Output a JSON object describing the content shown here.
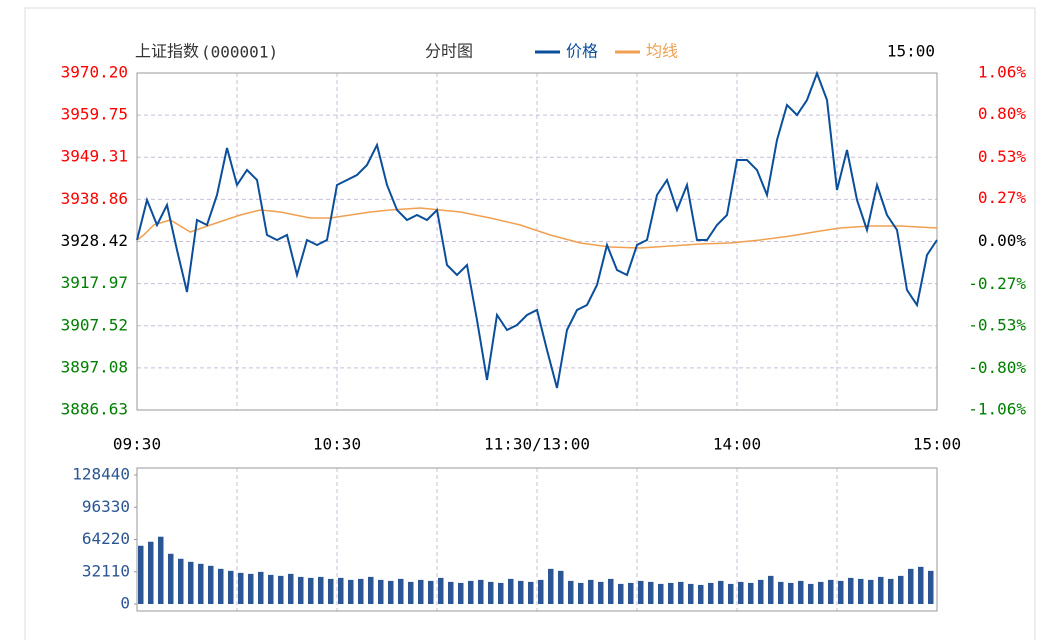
{
  "chart_data": [
    {
      "type": "line",
      "title": "上证指数",
      "subtitle": "(000001)",
      "chart_label": "分时图",
      "time_label": "15:00",
      "xlim": [
        0,
        240
      ],
      "xticks": [
        {
          "value": 0,
          "label": "09:30"
        },
        {
          "value": 60,
          "label": "10:30"
        },
        {
          "value": 120,
          "label": "11:30/13:00"
        },
        {
          "value": 180,
          "label": "14:00"
        },
        {
          "value": 240,
          "label": "15:00"
        }
      ],
      "ylim": [
        3886.63,
        3970.2
      ],
      "yticks": [
        {
          "value": 3970.2,
          "label": "3970.20"
        },
        3959.75,
        3949.31,
        3938.86,
        3928.42,
        3917.97,
        3907.52,
        3897.08,
        3886.63
      ],
      "y2lim": [
        -1.06,
        1.06
      ],
      "y2ticks": [
        {
          "value": 1.06,
          "label": "1.06%"
        },
        {
          "value": 0.8,
          "label": "0.80%"
        },
        {
          "value": 0.53,
          "label": "0.53%"
        },
        {
          "value": 0.27,
          "label": "0.27%"
        },
        {
          "value": 0,
          "label": "0.00%"
        },
        {
          "value": -0.27,
          "label": "-0.27%"
        },
        {
          "value": -0.53,
          "label": "-0.53%"
        },
        {
          "value": -0.8,
          "label": "-0.80%"
        },
        {
          "value": -1.06,
          "label": "-1.06%"
        }
      ],
      "grid": true,
      "up_color": "#ff0000",
      "down_color": "#008000",
      "flat_color": "#000000",
      "series": [
        {
          "name": "价格",
          "color": "#0b4f9c",
          "x": [
            0,
            3,
            6,
            9,
            12,
            15,
            18,
            21,
            24,
            27,
            30,
            33,
            36,
            39,
            42,
            45,
            48,
            51,
            54,
            57,
            60,
            63,
            66,
            69,
            72,
            75,
            78,
            81,
            84,
            87,
            90,
            93,
            96,
            99,
            102,
            105,
            108,
            111,
            114,
            117,
            120,
            123,
            126,
            129,
            132,
            135,
            138,
            141,
            144,
            147,
            150,
            153,
            156,
            159,
            162,
            165,
            168,
            171,
            174,
            177,
            180,
            183,
            186,
            189,
            192,
            195,
            198,
            201,
            204,
            207,
            210,
            213,
            216,
            219,
            222,
            225,
            228,
            231,
            234,
            237,
            240
          ],
          "values": [
            3928.78,
            3938.7,
            3932.5,
            3937.46,
            3926.3,
            3915.89,
            3933.74,
            3932.5,
            3939.94,
            3951.6,
            3942.42,
            3946.14,
            3943.66,
            3930.02,
            3928.78,
            3930.02,
            3920.1,
            3928.78,
            3927.54,
            3928.78,
            3942.42,
            3943.66,
            3944.9,
            3947.38,
            3952.34,
            3942.42,
            3936.22,
            3933.74,
            3934.98,
            3933.74,
            3936.22,
            3922.58,
            3920.1,
            3922.58,
            3908.94,
            3894.06,
            3910.18,
            3906.46,
            3907.7,
            3910.18,
            3911.42,
            3901.5,
            3892.08,
            3906.46,
            3911.42,
            3912.66,
            3917.62,
            3927.54,
            3921.34,
            3920.1,
            3927.54,
            3928.78,
            3939.94,
            3943.66,
            3936.22,
            3942.42,
            3928.78,
            3928.78,
            3932.5,
            3934.98,
            3948.62,
            3948.62,
            3946.14,
            3939.94,
            3953.58,
            3962.26,
            3959.78,
            3963.5,
            3970.1,
            3963.5,
            3941.18,
            3951.1,
            3938.7,
            3931.26,
            3942.42,
            3934.98,
            3931.26,
            3916.38,
            3912.66,
            3925.06,
            3928.78
          ]
        },
        {
          "name": "均线",
          "color": "#f0a050",
          "x": [
            0,
            2,
            5,
            10,
            16,
            22,
            31,
            37,
            43,
            52,
            58,
            64,
            70,
            76,
            85,
            91,
            97,
            106,
            115,
            124,
            133,
            142,
            151,
            160,
            169,
            178,
            187,
            196,
            205,
            211,
            220,
            229,
            240
          ],
          "values": [
            3928.78,
            3930.02,
            3932.5,
            3933.74,
            3930.77,
            3932.5,
            3934.98,
            3936.22,
            3935.73,
            3934.24,
            3934.24,
            3934.98,
            3935.73,
            3936.22,
            3936.72,
            3936.22,
            3935.73,
            3934.24,
            3932.5,
            3930.02,
            3928.04,
            3927.05,
            3926.8,
            3927.3,
            3927.79,
            3928.04,
            3928.78,
            3929.78,
            3931.02,
            3931.76,
            3932.26,
            3932.26,
            3931.76
          ]
        }
      ]
    },
    {
      "type": "bar",
      "xlim": [
        0,
        240
      ],
      "ylim": [
        0,
        128440
      ],
      "yticks": [
        0,
        32110,
        64220,
        96330,
        128440
      ],
      "color": "#2c5594",
      "x": [
        0,
        3,
        6,
        9,
        12,
        15,
        18,
        21,
        24,
        27,
        30,
        33,
        36,
        39,
        42,
        45,
        48,
        51,
        54,
        57,
        60,
        63,
        66,
        69,
        72,
        75,
        78,
        81,
        84,
        87,
        90,
        93,
        96,
        99,
        102,
        105,
        108,
        111,
        114,
        117,
        120,
        123,
        126,
        129,
        132,
        135,
        138,
        141,
        144,
        147,
        150,
        153,
        156,
        159,
        162,
        165,
        168,
        171,
        174,
        177,
        180,
        183,
        186,
        189,
        192,
        195,
        198,
        201,
        204,
        207,
        210,
        213,
        216,
        219,
        222,
        225,
        228,
        231,
        234,
        237
      ],
      "values": [
        58000,
        62000,
        67000,
        50000,
        45000,
        42000,
        40000,
        38000,
        35000,
        33000,
        31000,
        30000,
        32000,
        29000,
        28000,
        30000,
        27000,
        26000,
        27000,
        25000,
        26000,
        24000,
        25000,
        27000,
        24000,
        23000,
        25000,
        22000,
        24000,
        23000,
        26000,
        22000,
        21000,
        23000,
        24000,
        22000,
        21000,
        25000,
        23000,
        22000,
        24000,
        35000,
        33000,
        23000,
        21000,
        24000,
        22000,
        25000,
        20000,
        21000,
        23000,
        22000,
        20000,
        21000,
        22000,
        20000,
        19000,
        21000,
        23000,
        20000,
        22000,
        21000,
        24000,
        28000,
        22000,
        21000,
        23000,
        20000,
        22000,
        24000,
        23000,
        26000,
        25000,
        24000,
        27000,
        25000,
        28000,
        35000,
        37000,
        33000
      ]
    }
  ]
}
